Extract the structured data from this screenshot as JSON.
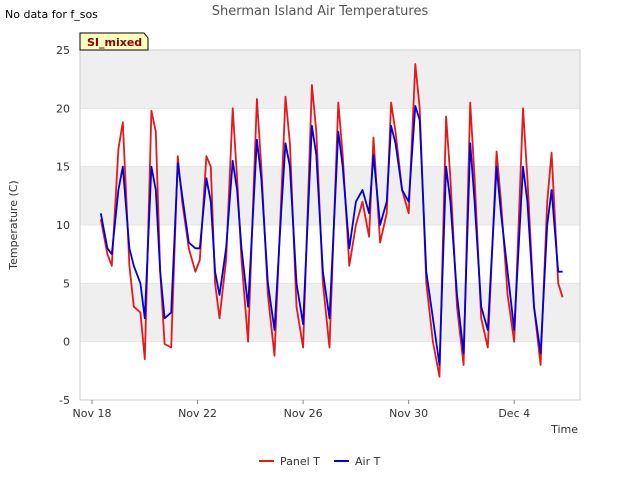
{
  "page": {
    "nodata_text": "No data for f_sos",
    "badge_text": "SI_mixed"
  },
  "colors": {
    "panel_t": "#e31a1c",
    "air_t": "#0000dd",
    "band": "#efefef",
    "badge_fill": "#ffffc0",
    "badge_text": "#8b0000"
  },
  "chart_data": {
    "type": "line",
    "title": "Sherman Island Air Temperatures",
    "xlabel": "Time",
    "ylabel": "Temperature (C)",
    "ylim": [
      -5,
      25
    ],
    "y_ticks": [
      -5,
      0,
      5,
      10,
      15,
      20,
      25
    ],
    "x_range": [
      "2023-11-18",
      "2023-12-06"
    ],
    "x_ticks": [
      {
        "date": "2023-11-18",
        "label": "Nov 18"
      },
      {
        "date": "2023-11-22",
        "label": "Nov 22"
      },
      {
        "date": "2023-11-26",
        "label": "Nov 26"
      },
      {
        "date": "2023-11-30",
        "label": "Nov 30"
      },
      {
        "date": "2023-12-04",
        "label": "Dec 4"
      }
    ],
    "grid": "horizontal bands",
    "legend_position": "bottom",
    "series": [
      {
        "name": "Panel T",
        "points": [
          [
            "2023-11-18T08:00",
            10.5
          ],
          [
            "2023-11-18T14:00",
            7.5
          ],
          [
            "2023-11-18T18:00",
            6.5
          ],
          [
            "2023-11-19T00:00",
            16.5
          ],
          [
            "2023-11-19T04:00",
            18.8
          ],
          [
            "2023-11-19T10:00",
            6.5
          ],
          [
            "2023-11-19T14:00",
            3.0
          ],
          [
            "2023-11-19T20:00",
            2.5
          ],
          [
            "2023-11-20T00:00",
            -1.5
          ],
          [
            "2023-11-20T06:00",
            19.8
          ],
          [
            "2023-11-20T10:00",
            18.0
          ],
          [
            "2023-11-20T14:00",
            6.0
          ],
          [
            "2023-11-20T18:00",
            -0.2
          ],
          [
            "2023-11-21T00:00",
            -0.5
          ],
          [
            "2023-11-21T06:00",
            15.9
          ],
          [
            "2023-11-21T10:00",
            12.0
          ],
          [
            "2023-11-21T16:00",
            8.0
          ],
          [
            "2023-11-21T22:00",
            6.0
          ],
          [
            "2023-11-22T02:00",
            7.0
          ],
          [
            "2023-11-22T08:00",
            15.9
          ],
          [
            "2023-11-22T12:00",
            15.0
          ],
          [
            "2023-11-22T16:00",
            5.0
          ],
          [
            "2023-11-22T20:00",
            2.0
          ],
          [
            "2023-11-23T02:00",
            7.0
          ],
          [
            "2023-11-23T08:00",
            20.0
          ],
          [
            "2023-11-23T12:00",
            14.0
          ],
          [
            "2023-11-23T16:00",
            7.0
          ],
          [
            "2023-11-23T22:00",
            0.0
          ],
          [
            "2023-11-24T06:00",
            20.8
          ],
          [
            "2023-11-24T10:00",
            15.0
          ],
          [
            "2023-11-24T16:00",
            4.0
          ],
          [
            "2023-11-24T22:00",
            -1.2
          ],
          [
            "2023-11-25T04:00",
            12.0
          ],
          [
            "2023-11-25T08:00",
            21.0
          ],
          [
            "2023-11-25T12:00",
            17.0
          ],
          [
            "2023-11-25T18:00",
            3.0
          ],
          [
            "2023-11-26T00:00",
            -0.5
          ],
          [
            "2023-11-26T08:00",
            22.0
          ],
          [
            "2023-11-26T12:00",
            18.0
          ],
          [
            "2023-11-26T18:00",
            5.0
          ],
          [
            "2023-11-27T00:00",
            -0.5
          ],
          [
            "2023-11-27T08:00",
            20.5
          ],
          [
            "2023-11-27T12:00",
            16.0
          ],
          [
            "2023-11-27T18:00",
            6.5
          ],
          [
            "2023-11-28T00:00",
            10.0
          ],
          [
            "2023-11-28T06:00",
            12.0
          ],
          [
            "2023-11-28T12:00",
            9.0
          ],
          [
            "2023-11-28T16:00",
            17.5
          ],
          [
            "2023-11-28T22:00",
            8.5
          ],
          [
            "2023-11-29T04:00",
            11.0
          ],
          [
            "2023-11-29T08:00",
            20.5
          ],
          [
            "2023-11-29T12:00",
            18.0
          ],
          [
            "2023-11-29T18:00",
            13.0
          ],
          [
            "2023-11-30T00:00",
            11.0
          ],
          [
            "2023-11-30T06:00",
            23.8
          ],
          [
            "2023-11-30T10:00",
            20.0
          ],
          [
            "2023-11-30T16:00",
            5.0
          ],
          [
            "2023-11-30T22:00",
            0.0
          ],
          [
            "2023-12-01T04:00",
            -3.0
          ],
          [
            "2023-12-01T10:00",
            19.3
          ],
          [
            "2023-12-01T14:00",
            14.0
          ],
          [
            "2023-12-01T20:00",
            3.0
          ],
          [
            "2023-12-02T02:00",
            -2.0
          ],
          [
            "2023-12-02T08:00",
            20.5
          ],
          [
            "2023-12-02T12:00",
            14.0
          ],
          [
            "2023-12-02T18:00",
            2.0
          ],
          [
            "2023-12-03T00:00",
            -0.5
          ],
          [
            "2023-12-03T08:00",
            16.3
          ],
          [
            "2023-12-03T12:00",
            12.0
          ],
          [
            "2023-12-03T18:00",
            4.0
          ],
          [
            "2023-12-04T00:00",
            0.0
          ],
          [
            "2023-12-04T08:00",
            20.0
          ],
          [
            "2023-12-04T12:00",
            14.0
          ],
          [
            "2023-12-04T18:00",
            3.0
          ],
          [
            "2023-12-05T00:00",
            -2.0
          ],
          [
            "2023-12-05T06:00",
            12.0
          ],
          [
            "2023-12-05T10:00",
            16.2
          ],
          [
            "2023-12-05T16:00",
            5.0
          ],
          [
            "2023-12-05T20:00",
            3.8
          ]
        ]
      },
      {
        "name": "Air T",
        "points": [
          [
            "2023-11-18T08:00",
            11.0
          ],
          [
            "2023-11-18T14:00",
            8.0
          ],
          [
            "2023-11-18T18:00",
            7.5
          ],
          [
            "2023-11-19T00:00",
            13.0
          ],
          [
            "2023-11-19T04:00",
            15.0
          ],
          [
            "2023-11-19T10:00",
            8.0
          ],
          [
            "2023-11-19T14:00",
            6.5
          ],
          [
            "2023-11-19T20:00",
            5.0
          ],
          [
            "2023-11-20T00:00",
            2.0
          ],
          [
            "2023-11-20T06:00",
            15.0
          ],
          [
            "2023-11-20T10:00",
            13.0
          ],
          [
            "2023-11-20T14:00",
            6.0
          ],
          [
            "2023-11-20T18:00",
            2.0
          ],
          [
            "2023-11-21T00:00",
            2.5
          ],
          [
            "2023-11-21T06:00",
            15.3
          ],
          [
            "2023-11-21T10:00",
            12.5
          ],
          [
            "2023-11-21T16:00",
            8.5
          ],
          [
            "2023-11-21T22:00",
            8.0
          ],
          [
            "2023-11-22T02:00",
            8.0
          ],
          [
            "2023-11-22T08:00",
            14.0
          ],
          [
            "2023-11-22T12:00",
            12.0
          ],
          [
            "2023-11-22T16:00",
            6.0
          ],
          [
            "2023-11-22T20:00",
            4.0
          ],
          [
            "2023-11-23T02:00",
            8.0
          ],
          [
            "2023-11-23T08:00",
            15.5
          ],
          [
            "2023-11-23T12:00",
            13.0
          ],
          [
            "2023-11-23T16:00",
            8.0
          ],
          [
            "2023-11-23T22:00",
            3.0
          ],
          [
            "2023-11-24T06:00",
            17.3
          ],
          [
            "2023-11-24T10:00",
            14.0
          ],
          [
            "2023-11-24T16:00",
            5.0
          ],
          [
            "2023-11-24T22:00",
            1.0
          ],
          [
            "2023-11-25T04:00",
            11.0
          ],
          [
            "2023-11-25T08:00",
            17.0
          ],
          [
            "2023-11-25T12:00",
            15.0
          ],
          [
            "2023-11-25T18:00",
            5.0
          ],
          [
            "2023-11-26T00:00",
            1.5
          ],
          [
            "2023-11-26T08:00",
            18.5
          ],
          [
            "2023-11-26T12:00",
            16.0
          ],
          [
            "2023-11-26T18:00",
            6.0
          ],
          [
            "2023-11-27T00:00",
            2.0
          ],
          [
            "2023-11-27T08:00",
            18.0
          ],
          [
            "2023-11-27T12:00",
            15.0
          ],
          [
            "2023-11-27T18:00",
            8.0
          ],
          [
            "2023-11-28T00:00",
            12.0
          ],
          [
            "2023-11-28T06:00",
            13.0
          ],
          [
            "2023-11-28T12:00",
            11.0
          ],
          [
            "2023-11-28T16:00",
            16.0
          ],
          [
            "2023-11-28T22:00",
            10.0
          ],
          [
            "2023-11-29T04:00",
            12.0
          ],
          [
            "2023-11-29T08:00",
            18.5
          ],
          [
            "2023-11-29T12:00",
            17.0
          ],
          [
            "2023-11-29T18:00",
            13.0
          ],
          [
            "2023-11-30T00:00",
            12.0
          ],
          [
            "2023-11-30T06:00",
            20.2
          ],
          [
            "2023-11-30T10:00",
            19.0
          ],
          [
            "2023-11-30T16:00",
            6.0
          ],
          [
            "2023-11-30T22:00",
            2.0
          ],
          [
            "2023-12-01T04:00",
            -2.0
          ],
          [
            "2023-12-01T10:00",
            15.0
          ],
          [
            "2023-12-01T14:00",
            12.0
          ],
          [
            "2023-12-01T20:00",
            4.0
          ],
          [
            "2023-12-02T02:00",
            -1.0
          ],
          [
            "2023-12-02T08:00",
            17.0
          ],
          [
            "2023-12-02T12:00",
            12.0
          ],
          [
            "2023-12-02T18:00",
            3.0
          ],
          [
            "2023-12-03T00:00",
            1.0
          ],
          [
            "2023-12-03T08:00",
            15.0
          ],
          [
            "2023-12-03T12:00",
            11.0
          ],
          [
            "2023-12-03T18:00",
            6.0
          ],
          [
            "2023-12-04T00:00",
            1.0
          ],
          [
            "2023-12-04T08:00",
            15.0
          ],
          [
            "2023-12-04T12:00",
            12.0
          ],
          [
            "2023-12-04T18:00",
            3.0
          ],
          [
            "2023-12-05T00:00",
            -1.0
          ],
          [
            "2023-12-05T06:00",
            10.0
          ],
          [
            "2023-12-05T10:00",
            13.0
          ],
          [
            "2023-12-05T16:00",
            6.0
          ],
          [
            "2023-12-05T20:00",
            6.0
          ]
        ]
      }
    ]
  }
}
